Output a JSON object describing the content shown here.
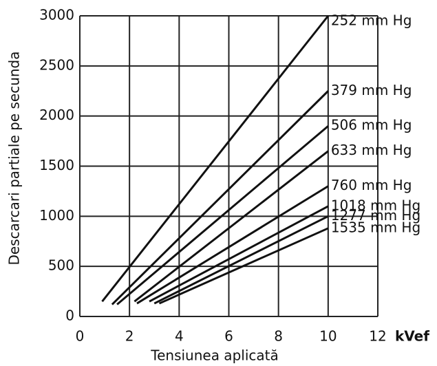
{
  "chart_data": {
    "type": "line",
    "x_label": "Tensiunea aplicată",
    "x_unit": "kVef",
    "y_label": "Descarcari partiale pe secunda",
    "xlim": [
      0,
      12
    ],
    "xticks": [
      0,
      2,
      4,
      6,
      8,
      10,
      12
    ],
    "ylim": [
      0,
      3000
    ],
    "yticks": [
      0,
      500,
      1000,
      1500,
      2000,
      2500,
      3000
    ],
    "grid": true,
    "series": [
      {
        "name": "252 mm Hg",
        "color": "#111111",
        "x": [
          0.9,
          10
        ],
        "values": [
          150,
          3000
        ]
      },
      {
        "name": "379 mm Hg",
        "color": "#111111",
        "x": [
          1.3,
          10
        ],
        "values": [
          120,
          2250
        ]
      },
      {
        "name": "506 mm Hg",
        "color": "#111111",
        "x": [
          1.5,
          10
        ],
        "values": [
          120,
          1900
        ]
      },
      {
        "name": "633 mm Hg",
        "color": "#111111",
        "x": [
          2.2,
          10
        ],
        "values": [
          150,
          1650
        ]
      },
      {
        "name": "760 mm Hg",
        "color": "#111111",
        "x": [
          2.3,
          10
        ],
        "values": [
          130,
          1300
        ]
      },
      {
        "name": "1018 mm Hg",
        "color": "#111111",
        "x": [
          2.8,
          10
        ],
        "values": [
          150,
          1100
        ]
      },
      {
        "name": "1277 mm Hg",
        "color": "#111111",
        "x": [
          3.0,
          10
        ],
        "values": [
          130,
          1000
        ]
      },
      {
        "name": "1535 mm Hg",
        "color": "#111111",
        "x": [
          3.2,
          10
        ],
        "values": [
          130,
          880
        ]
      }
    ]
  }
}
